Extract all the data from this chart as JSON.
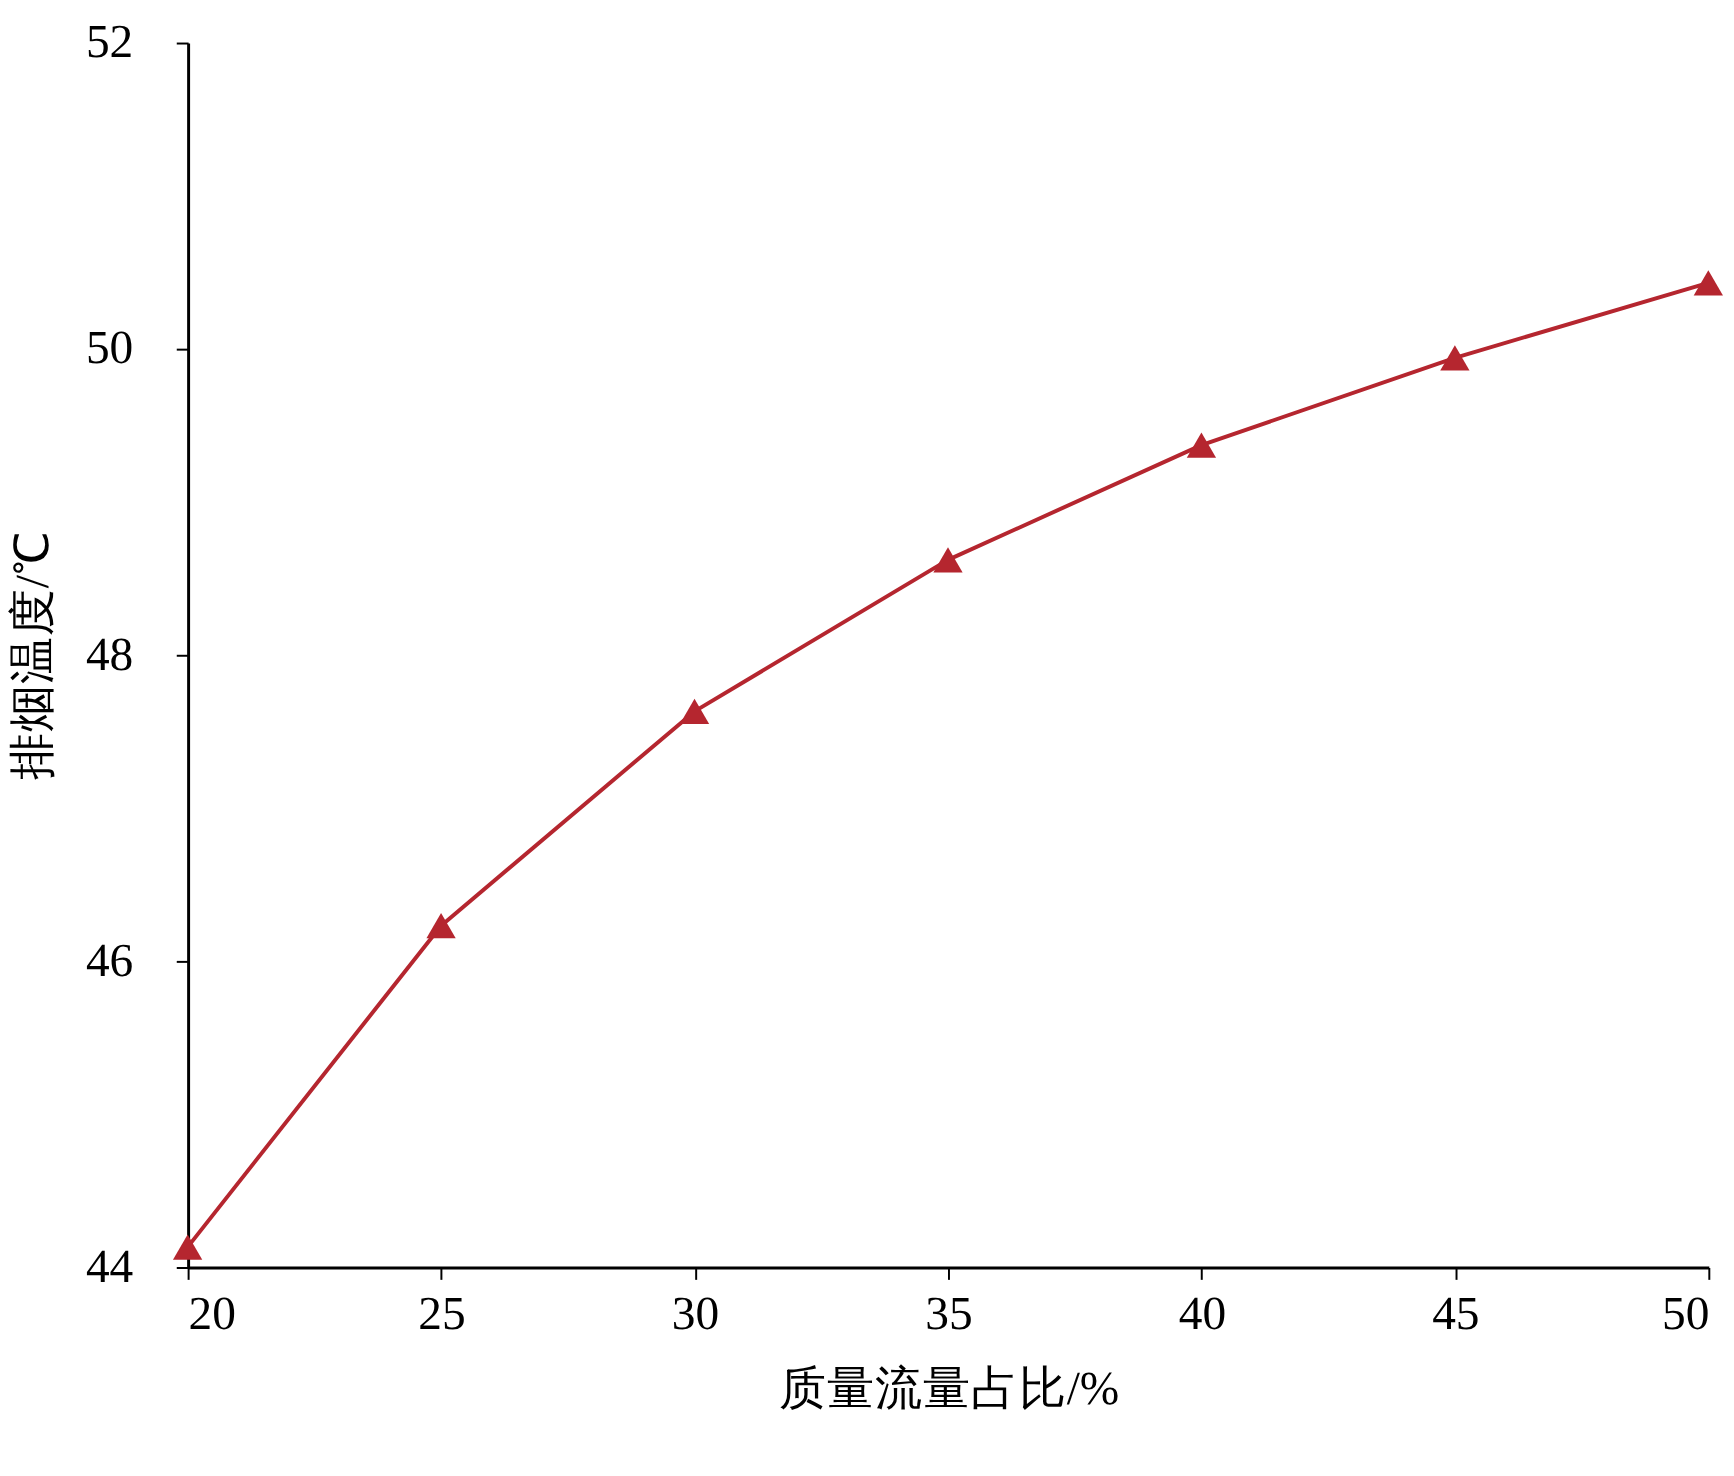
{
  "chart_data": {
    "type": "line",
    "xlabel": "质量流量占比/%",
    "ylabel": "排烟温度/℃",
    "x": [
      20,
      25,
      30,
      35,
      40,
      45,
      50
    ],
    "series": [
      {
        "color": "#b5262f",
        "values": [
          44.13,
          46.23,
          47.63,
          48.62,
          49.37,
          49.94,
          50.43
        ]
      }
    ],
    "xlim": [
      20,
      50
    ],
    "xticks": [
      20,
      25,
      30,
      35,
      40,
      45,
      50
    ],
    "ylim": [
      44,
      52
    ],
    "yticks": [
      44,
      46,
      48,
      50,
      52
    ],
    "grid": false,
    "marker": "triangle",
    "line_style": "solid"
  }
}
